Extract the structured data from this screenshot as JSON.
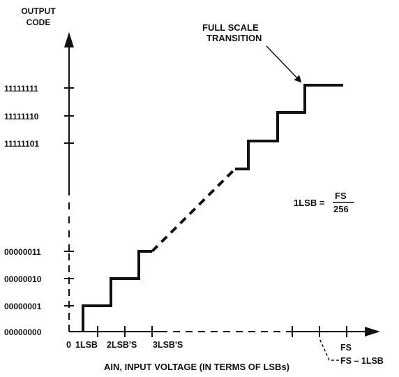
{
  "y_axis": {
    "title_line1": "OUTPUT",
    "title_line2": "CODE",
    "codes": [
      "11111111",
      "11111110",
      "11111101",
      "00000011",
      "00000010",
      "00000001",
      "00000000"
    ]
  },
  "x_axis": {
    "tick_labels": [
      "0",
      "1LSB",
      "2LSB'S",
      "3LSB'S"
    ],
    "fs_label": "FS",
    "fs_minus_label": "FS – 1LSB",
    "caption": "AIN, INPUT VOLTAGE (IN TERMS OF LSBs)"
  },
  "annotation": {
    "line1": "FULL SCALE",
    "line2": "TRANSITION"
  },
  "formula": {
    "lhs": "1LSB =",
    "numerator": "FS",
    "denominator": "256"
  }
}
